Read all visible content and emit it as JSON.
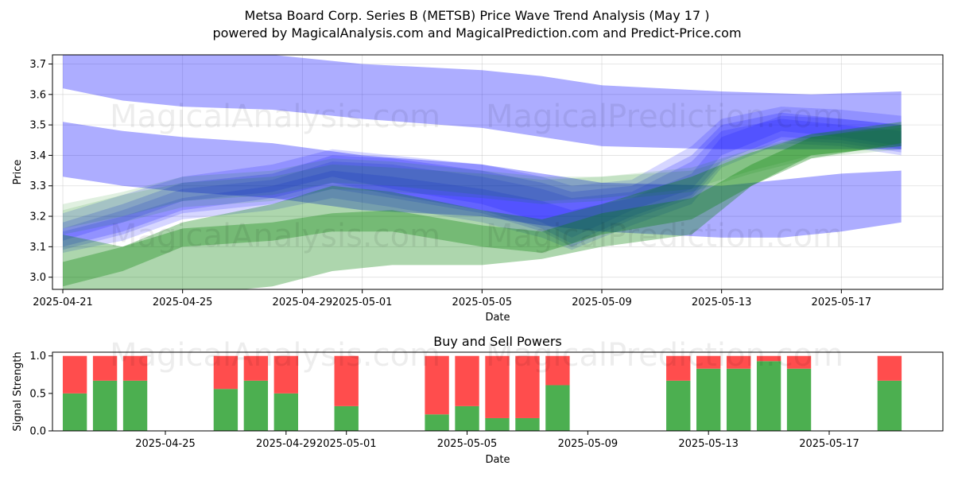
{
  "title_line1": "Metsa Board Corp. Series B (METSB) Price Wave Trend Analysis (May 17 )",
  "title_line2": "powered by MagicalAnalysis.com and MagicalPrediction.com and Predict-Price.com",
  "watermarks": [
    "MagicalAnalysis.com",
    "MagicalPrediction.com"
  ],
  "colors": {
    "blue_band": "#0000ff",
    "green_band": "#008000",
    "buy": "#4caf50",
    "sell": "#ff4d4d"
  },
  "chart_data": [
    {
      "type": "area",
      "title": "",
      "xlabel": "Date",
      "ylabel": "Price",
      "ylim": [
        2.96,
        3.73
      ],
      "xlim": [
        "2025-04-21",
        "2025-05-20"
      ],
      "x_ticks": [
        "2025-04-21",
        "2025-04-25",
        "2025-04-29",
        "2025-05-01",
        "2025-05-05",
        "2025-05-09",
        "2025-05-13",
        "2025-05-17"
      ],
      "y_ticks": [
        3.0,
        3.1,
        3.2,
        3.3,
        3.4,
        3.5,
        3.6,
        3.7
      ],
      "grid": true,
      "series": [
        {
          "color": "blue",
          "x": [
            "2025-04-21",
            "2025-04-23",
            "2025-04-25",
            "2025-04-28",
            "2025-05-01",
            "2025-05-05",
            "2025-05-07",
            "2025-05-09",
            "2025-05-13",
            "2025-05-16",
            "2025-05-19"
          ],
          "upper": [
            3.74,
            3.73,
            3.73,
            3.73,
            3.7,
            3.68,
            3.66,
            3.63,
            3.61,
            3.6,
            3.61
          ],
          "lower": [
            3.62,
            3.58,
            3.56,
            3.55,
            3.52,
            3.49,
            3.46,
            3.43,
            3.42,
            3.42,
            3.42
          ]
        },
        {
          "color": "blue",
          "x": [
            "2025-04-21",
            "2025-04-23",
            "2025-04-25",
            "2025-04-28",
            "2025-05-01",
            "2025-05-05",
            "2025-05-07",
            "2025-05-09",
            "2025-05-13",
            "2025-05-15",
            "2025-05-17",
            "2025-05-19"
          ],
          "upper": [
            3.51,
            3.48,
            3.46,
            3.44,
            3.4,
            3.37,
            3.34,
            3.31,
            3.3,
            3.32,
            3.34,
            3.35
          ],
          "lower": [
            3.33,
            3.3,
            3.28,
            3.26,
            3.22,
            3.2,
            3.17,
            3.15,
            3.13,
            3.13,
            3.15,
            3.18
          ]
        },
        {
          "color": "blue",
          "x": [
            "2025-04-21",
            "2025-04-23",
            "2025-04-25",
            "2025-04-28",
            "2025-04-30",
            "2025-05-02",
            "2025-05-05",
            "2025-05-07",
            "2025-05-08",
            "2025-05-10",
            "2025-05-12",
            "2025-05-13",
            "2025-05-15",
            "2025-05-17",
            "2025-05-19"
          ],
          "upper": [
            3.18,
            3.24,
            3.31,
            3.34,
            3.4,
            3.39,
            3.35,
            3.31,
            3.28,
            3.3,
            3.4,
            3.5,
            3.54,
            3.52,
            3.5
          ],
          "lower": [
            3.1,
            3.15,
            3.22,
            3.26,
            3.31,
            3.27,
            3.22,
            3.16,
            3.11,
            3.2,
            3.27,
            3.38,
            3.46,
            3.45,
            3.42
          ]
        },
        {
          "color": "blue",
          "x": [
            "2025-04-21",
            "2025-04-23",
            "2025-04-25",
            "2025-04-28",
            "2025-04-30",
            "2025-05-02",
            "2025-05-05",
            "2025-05-07",
            "2025-05-08",
            "2025-05-10",
            "2025-05-12",
            "2025-05-13",
            "2025-05-15",
            "2025-05-17",
            "2025-05-19"
          ],
          "upper": [
            3.21,
            3.27,
            3.33,
            3.37,
            3.42,
            3.4,
            3.37,
            3.33,
            3.3,
            3.32,
            3.43,
            3.52,
            3.56,
            3.55,
            3.53
          ],
          "lower": [
            3.12,
            3.18,
            3.25,
            3.28,
            3.33,
            3.29,
            3.24,
            3.18,
            3.13,
            3.22,
            3.29,
            3.4,
            3.48,
            3.46,
            3.43
          ]
        },
        {
          "color": "blue",
          "x": [
            "2025-04-21",
            "2025-04-23",
            "2025-04-25",
            "2025-04-28",
            "2025-04-30",
            "2025-05-02",
            "2025-05-05",
            "2025-05-07",
            "2025-05-08",
            "2025-05-10",
            "2025-05-12",
            "2025-05-13",
            "2025-05-15",
            "2025-05-17",
            "2025-05-19"
          ],
          "upper": [
            3.16,
            3.22,
            3.29,
            3.32,
            3.38,
            3.37,
            3.33,
            3.29,
            3.26,
            3.28,
            3.38,
            3.48,
            3.52,
            3.5,
            3.48
          ],
          "lower": [
            3.09,
            3.14,
            3.21,
            3.24,
            3.29,
            3.26,
            3.21,
            3.15,
            3.1,
            3.19,
            3.26,
            3.37,
            3.45,
            3.44,
            3.41
          ]
        },
        {
          "color": "blue",
          "x": [
            "2025-04-21",
            "2025-04-23",
            "2025-04-25",
            "2025-04-28",
            "2025-04-30",
            "2025-05-02",
            "2025-05-05",
            "2025-05-07",
            "2025-05-08",
            "2025-05-10",
            "2025-05-12",
            "2025-05-13",
            "2025-05-15",
            "2025-05-17",
            "2025-05-19"
          ],
          "upper": [
            3.15,
            3.2,
            3.26,
            3.3,
            3.35,
            3.33,
            3.29,
            3.25,
            3.22,
            3.26,
            3.34,
            3.46,
            3.53,
            3.52,
            3.5
          ],
          "lower": [
            3.08,
            3.12,
            3.19,
            3.22,
            3.26,
            3.23,
            3.18,
            3.13,
            3.09,
            3.17,
            3.24,
            3.36,
            3.44,
            3.43,
            3.4
          ]
        },
        {
          "color": "green",
          "x": [
            "2025-04-21",
            "2025-04-23",
            "2025-04-25",
            "2025-04-28",
            "2025-04-30",
            "2025-05-02",
            "2025-05-05",
            "2025-05-07",
            "2025-05-09",
            "2025-05-12",
            "2025-05-14",
            "2025-05-16",
            "2025-05-19"
          ],
          "upper": [
            3.14,
            3.1,
            3.18,
            3.24,
            3.3,
            3.28,
            3.22,
            3.19,
            3.24,
            3.33,
            3.41,
            3.47,
            3.51
          ],
          "lower": [
            2.96,
            2.92,
            2.94,
            2.97,
            3.02,
            3.04,
            3.04,
            3.06,
            3.1,
            3.14,
            3.3,
            3.4,
            3.43
          ]
        },
        {
          "color": "green",
          "x": [
            "2025-04-21",
            "2025-04-23",
            "2025-04-25",
            "2025-04-28",
            "2025-04-30",
            "2025-05-02",
            "2025-05-05",
            "2025-05-07",
            "2025-05-09",
            "2025-05-12",
            "2025-05-14",
            "2025-05-16",
            "2025-05-19"
          ],
          "upper": [
            3.05,
            3.1,
            3.16,
            3.18,
            3.21,
            3.22,
            3.17,
            3.15,
            3.21,
            3.26,
            3.37,
            3.46,
            3.5
          ],
          "lower": [
            2.97,
            3.02,
            3.1,
            3.12,
            3.15,
            3.15,
            3.1,
            3.08,
            3.14,
            3.19,
            3.3,
            3.39,
            3.44
          ]
        },
        {
          "color": "green",
          "x": [
            "2025-04-21",
            "2025-04-23",
            "2025-04-25",
            "2025-04-28",
            "2025-04-30",
            "2025-05-02",
            "2025-05-05",
            "2025-05-07",
            "2025-05-09",
            "2025-05-12",
            "2025-05-14",
            "2025-05-16",
            "2025-05-19"
          ],
          "upper": [
            3.24,
            3.28,
            3.33,
            3.35,
            3.39,
            3.38,
            3.35,
            3.33,
            3.33,
            3.36,
            3.42,
            3.47,
            3.5
          ],
          "lower": [
            3.16,
            3.2,
            3.25,
            3.27,
            3.31,
            3.3,
            3.27,
            3.25,
            3.26,
            3.29,
            3.35,
            3.4,
            3.43
          ]
        },
        {
          "color": "green",
          "x": [
            "2025-04-21",
            "2025-04-23",
            "2025-04-25",
            "2025-04-28",
            "2025-04-30",
            "2025-05-02",
            "2025-05-05",
            "2025-05-07",
            "2025-05-09",
            "2025-05-12",
            "2025-05-14",
            "2025-05-16",
            "2025-05-19"
          ],
          "upper": [
            3.22,
            3.27,
            3.31,
            3.33,
            3.37,
            3.36,
            3.34,
            3.32,
            3.33,
            3.35,
            3.41,
            3.46,
            3.49
          ],
          "lower": [
            3.14,
            3.18,
            3.23,
            3.25,
            3.29,
            3.28,
            3.26,
            3.24,
            3.25,
            3.28,
            3.34,
            3.39,
            3.42
          ]
        }
      ]
    },
    {
      "type": "bar",
      "title": "Buy and Sell Powers",
      "xlabel": "Date",
      "ylabel": "Signal Strength",
      "ylim": [
        0,
        1.05
      ],
      "x_ticks": [
        "2025-04-25",
        "2025-04-29",
        "2025-05-01",
        "2025-05-05",
        "2025-05-09",
        "2025-05-13",
        "2025-05-17"
      ],
      "y_ticks": [
        "0.0",
        "0.5",
        "1.0"
      ],
      "series": [
        {
          "name": "Buy"
        },
        {
          "name": "Sell"
        }
      ],
      "categories": [
        "2025-04-22",
        "2025-04-23",
        "2025-04-24",
        "2025-04-27",
        "2025-04-28",
        "2025-04-29",
        "2025-05-01",
        "2025-05-04",
        "2025-05-05",
        "2025-05-06",
        "2025-05-07",
        "2025-05-08",
        "2025-05-12",
        "2025-05-13",
        "2025-05-14",
        "2025-05-15",
        "2025-05-16",
        "2025-05-19"
      ],
      "buy": [
        0.5,
        0.67,
        0.67,
        0.56,
        0.67,
        0.5,
        0.33,
        0.22,
        0.33,
        0.17,
        0.17,
        0.61,
        0.67,
        0.83,
        0.83,
        0.93,
        0.83,
        0.67
      ],
      "sell": [
        0.5,
        0.33,
        0.33,
        0.44,
        0.33,
        0.5,
        0.67,
        0.78,
        0.67,
        0.83,
        0.83,
        0.39,
        0.33,
        0.17,
        0.17,
        0.07,
        0.17,
        0.33
      ]
    }
  ]
}
